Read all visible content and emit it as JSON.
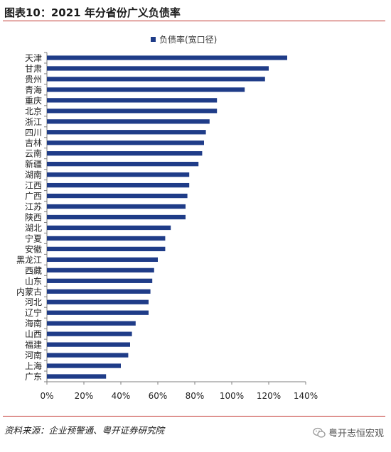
{
  "title": "图表10：2021 年分省份广义负债率",
  "source": "资料来源：企业预警通、粤开证券研究院",
  "brand": {
    "name": "粤开志恒宏观",
    "icon": "wechat-icon",
    "color": "#9a9a9a"
  },
  "colors": {
    "bar": "#1f3c88",
    "rule": "#c0312b"
  },
  "chart_data": {
    "type": "bar",
    "orientation": "horizontal",
    "categories": [
      "天津",
      "甘肃",
      "贵州",
      "青海",
      "重庆",
      "北京",
      "浙江",
      "四川",
      "吉林",
      "云南",
      "新疆",
      "湖南",
      "江西",
      "广西",
      "江苏",
      "陕西",
      "湖北",
      "宁夏",
      "安徽",
      "黑龙江",
      "西藏",
      "山东",
      "内蒙古",
      "河北",
      "辽宁",
      "海南",
      "山西",
      "福建",
      "河南",
      "上海",
      "广东"
    ],
    "series": [
      {
        "name": "负债率(宽口径)",
        "values": [
          130,
          120,
          118,
          107,
          92,
          92,
          88,
          86,
          85,
          84,
          82,
          77,
          77,
          76,
          75,
          75,
          67,
          64,
          64,
          60,
          58,
          57,
          56,
          55,
          55,
          48,
          46,
          45,
          44,
          40,
          32
        ]
      }
    ],
    "xlim": [
      0,
      140
    ],
    "xticks": [
      "0%",
      "20%",
      "40%",
      "60%",
      "80%",
      "100%",
      "120%",
      "140%"
    ],
    "xtick_values": [
      0,
      20,
      40,
      60,
      80,
      100,
      120,
      140
    ],
    "legend_position": "top",
    "grid": false
  }
}
